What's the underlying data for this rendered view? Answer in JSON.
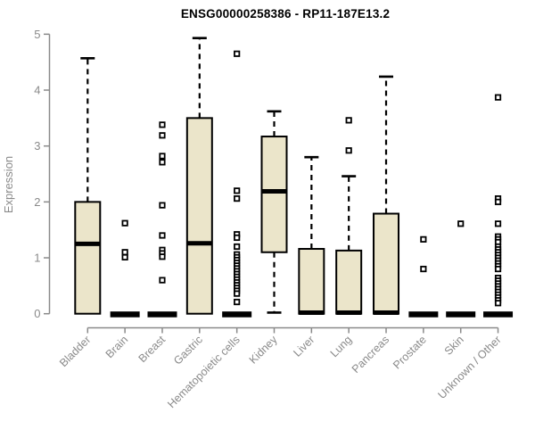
{
  "chart_data": {
    "type": "boxplot",
    "title": "ENSG00000258386 - RP11-187E13.2",
    "ylabel": "Expression",
    "xlabel": "",
    "ylim": [
      0,
      5
    ],
    "yticks": [
      0,
      1,
      2,
      3,
      4,
      5
    ],
    "grid": false,
    "legend": false,
    "categories": [
      "Bladder",
      "Brain",
      "Breast",
      "Gastric",
      "Hematopoietic cells",
      "Kidney",
      "Liver",
      "Lung",
      "Pancreas",
      "Prostate",
      "Skin",
      "Unknown / Other"
    ],
    "boxes": [
      {
        "category": "Bladder",
        "whisker_low": 0,
        "q1": 0,
        "median": 1.25,
        "q3": 2.0,
        "whisker_high": 4.57,
        "outliers": []
      },
      {
        "category": "Brain",
        "whisker_low": 0,
        "q1": 0,
        "median": 0.02,
        "q3": 0.03,
        "whisker_high": 0.03,
        "outliers": [
          1.62,
          1.1,
          1.01
        ]
      },
      {
        "category": "Breast",
        "whisker_low": 0,
        "q1": 0,
        "median": 0.02,
        "q3": 0.03,
        "whisker_high": 0.03,
        "outliers": [
          3.38,
          3.19,
          2.82,
          2.71,
          1.94,
          1.4,
          1.14,
          1.08,
          1.02,
          0.6
        ]
      },
      {
        "category": "Gastric",
        "whisker_low": 0,
        "q1": 0,
        "median": 1.26,
        "q3": 3.5,
        "whisker_high": 4.93,
        "outliers": []
      },
      {
        "category": "Hematopoietic cells",
        "whisker_low": 0,
        "q1": 0,
        "median": 0.02,
        "q3": 0.03,
        "whisker_high": 0.03,
        "outliers": [
          4.65,
          2.2,
          2.06,
          1.42,
          1.36,
          1.2,
          1.06,
          1.01,
          0.96,
          0.91,
          0.86,
          0.81,
          0.76,
          0.71,
          0.66,
          0.61,
          0.56,
          0.51,
          0.46,
          0.41,
          0.36,
          0.21
        ]
      },
      {
        "category": "Kidney",
        "whisker_low": 0.02,
        "q1": 1.1,
        "median": 2.19,
        "q3": 3.17,
        "whisker_high": 3.62,
        "outliers": []
      },
      {
        "category": "Liver",
        "whisker_low": 0,
        "q1": 0,
        "median": 0.02,
        "q3": 1.16,
        "whisker_high": 2.8,
        "outliers": []
      },
      {
        "category": "Lung",
        "whisker_low": 0,
        "q1": 0,
        "median": 0.02,
        "q3": 1.13,
        "whisker_high": 2.46,
        "outliers": [
          3.46,
          2.92
        ]
      },
      {
        "category": "Pancreas",
        "whisker_low": 0,
        "q1": 0,
        "median": 0.02,
        "q3": 1.79,
        "whisker_high": 4.24,
        "outliers": []
      },
      {
        "category": "Prostate",
        "whisker_low": 0,
        "q1": 0,
        "median": 0.02,
        "q3": 0.03,
        "whisker_high": 0.03,
        "outliers": [
          1.33,
          0.8
        ]
      },
      {
        "category": "Skin",
        "whisker_low": 0,
        "q1": 0,
        "median": 0.02,
        "q3": 0.03,
        "whisker_high": 0.03,
        "outliers": [
          1.61
        ]
      },
      {
        "category": "Unknown / Other",
        "whisker_low": 0,
        "q1": 0,
        "median": 0.02,
        "q3": 0.03,
        "whisker_high": 0.03,
        "outliers": [
          3.87,
          2.06,
          2.0,
          1.61,
          1.38,
          1.33,
          1.28,
          1.2,
          1.15,
          1.1,
          1.05,
          1.0,
          0.95,
          0.9,
          0.85,
          0.8,
          0.64,
          0.59,
          0.54,
          0.49,
          0.44,
          0.39,
          0.34,
          0.29,
          0.24,
          0.19
        ]
      }
    ],
    "colors": {
      "box_fill": "#EBE5CA",
      "box_stroke": "#000000",
      "axis": "#8A8A8A",
      "tick_label": "#8A8A8A",
      "title": "#000000"
    }
  }
}
